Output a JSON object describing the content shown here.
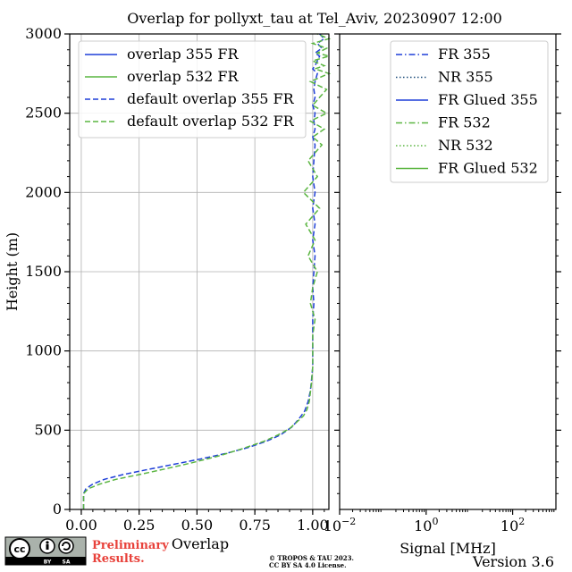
{
  "chart_data": [
    {
      "type": "line",
      "title": "Overlap for pollyxt_tau at Tel_Aviv, 20230907 12:00",
      "xlabel": "Overlap",
      "ylabel": "Height (m)",
      "xlim": [
        -0.05,
        1.07
      ],
      "ylim": [
        0,
        3000
      ],
      "xticks": [
        "0.00",
        "0.25",
        "0.50",
        "0.75",
        "1.00"
      ],
      "xtick_values": [
        0,
        0.25,
        0.5,
        0.75,
        1.0
      ],
      "yticks": [
        "0",
        "500",
        "1000",
        "1500",
        "2000",
        "2500",
        "3000"
      ],
      "ytick_values": [
        0,
        500,
        1000,
        1500,
        2000,
        2500,
        3000
      ],
      "grid": true,
      "legend_position": "top-left",
      "legend": [
        {
          "label": "overlap 355 FR",
          "color": "#1f3fd8",
          "style": "solid"
        },
        {
          "label": "overlap 532 FR",
          "color": "#5ab540",
          "style": "solid"
        },
        {
          "label": "default overlap 355 FR",
          "color": "#1f3fd8",
          "style": "dashed"
        },
        {
          "label": "default overlap 532 FR",
          "color": "#5ab540",
          "style": "dashed"
        }
      ],
      "series": [
        {
          "name": "default overlap 355 FR",
          "color": "#1f3fd8",
          "style": "dashed",
          "x": [
            0.01,
            0.01,
            0.02,
            0.05,
            0.1,
            0.18,
            0.28,
            0.4,
            0.52,
            0.63,
            0.72,
            0.8,
            0.86,
            0.91,
            0.94,
            0.965,
            0.98,
            0.99,
            0.995,
            1.0,
            1.0,
            1.0,
            1.0,
            1.005,
            1.0,
            1.005,
            1.01,
            1.0,
            1.01,
            1.0,
            1.01,
            1.0,
            1.005,
            1.01,
            1.0,
            1.01,
            1.005,
            1.01,
            1.0,
            1.01,
            1.005,
            1.01,
            1.02,
            1.0,
            1.01,
            1.02,
            1.03,
            1.01,
            1.04,
            1.02,
            1.05,
            1.03
          ],
          "y": [
            0,
            100,
            130,
            160,
            190,
            220,
            250,
            285,
            320,
            355,
            390,
            430,
            470,
            520,
            570,
            620,
            680,
            750,
            820,
            900,
            1000,
            1100,
            1200,
            1300,
            1400,
            1500,
            1600,
            1700,
            1800,
            1900,
            2000,
            2100,
            2200,
            2300,
            2350,
            2400,
            2450,
            2500,
            2550,
            2600,
            2650,
            2700,
            2750,
            2780,
            2800,
            2830,
            2860,
            2880,
            2910,
            2940,
            2970,
            3000
          ]
        },
        {
          "name": "default overlap 532 FR",
          "color": "#5ab540",
          "style": "dashed",
          "x": [
            0.01,
            0.01,
            0.03,
            0.08,
            0.15,
            0.25,
            0.36,
            0.48,
            0.6,
            0.7,
            0.79,
            0.85,
            0.9,
            0.93,
            0.96,
            0.975,
            0.985,
            0.99,
            0.995,
            1.0,
            1.0,
            1.0,
            1.01,
            0.99,
            1.0,
            1.02,
            0.98,
            1.01,
            0.97,
            1.03,
            0.96,
            1.02,
            0.98,
            1.04,
            1.0,
            1.05,
            0.99,
            1.06,
            1.0,
            1.03,
            1.06,
            0.99,
            1.07,
            1.01,
            1.05,
            1.0,
            1.07,
            1.02,
            1.06,
            1.0,
            1.07,
            1.02
          ],
          "y": [
            0,
            100,
            130,
            160,
            190,
            220,
            255,
            295,
            340,
            385,
            430,
            470,
            510,
            550,
            590,
            630,
            680,
            740,
            800,
            900,
            1000,
            1100,
            1200,
            1300,
            1400,
            1500,
            1600,
            1700,
            1800,
            1900,
            2000,
            2100,
            2200,
            2300,
            2350,
            2400,
            2450,
            2500,
            2550,
            2600,
            2650,
            2700,
            2750,
            2780,
            2800,
            2830,
            2860,
            2880,
            2910,
            2940,
            2970,
            3000
          ]
        }
      ]
    },
    {
      "type": "line",
      "xlabel": "Signal [MHz]",
      "xscale": "log",
      "xlim_exponent": [
        -2,
        3
      ],
      "xticks": [
        "-2",
        "0",
        "2"
      ],
      "xtick_values": [
        0.01,
        1,
        100
      ],
      "ylim": [
        0,
        3000
      ],
      "grid": false,
      "legend_position": "top-right",
      "legend": [
        {
          "label": "FR 355",
          "color": "#1f3fd8",
          "style": "dashdot"
        },
        {
          "label": "NR 355",
          "color": "#1a4a78",
          "style": "dotted"
        },
        {
          "label": "FR Glued 355",
          "color": "#1f3fd8",
          "style": "solid"
        },
        {
          "label": "FR 532",
          "color": "#5ab540",
          "style": "dashdot"
        },
        {
          "label": "NR 532",
          "color": "#5ab540",
          "style": "dotted"
        },
        {
          "label": "FR Glued 532",
          "color": "#5ab540",
          "style": "solid"
        }
      ],
      "series": []
    }
  ],
  "footer": {
    "prelim_line1": "Preliminary",
    "prelim_line2": "Results.",
    "copyright_line1": "© TROPOS & TAU 2023.",
    "copyright_line2": "CC BY SA 4.0 License.",
    "version": "Version 3.6",
    "cc_badge_labels": [
      "BY",
      "SA"
    ],
    "cc_logo_icon": "cc-by-sa-icon"
  }
}
